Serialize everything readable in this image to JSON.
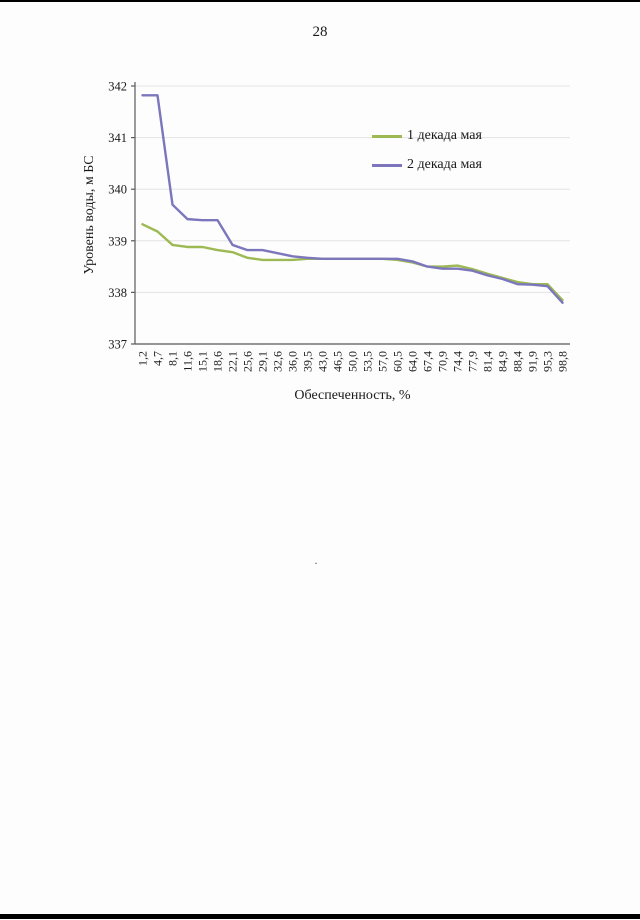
{
  "page": {
    "number": "28",
    "stray_mark": "·"
  },
  "chart_data": {
    "type": "line",
    "title": "",
    "xlabel": "Обеспеченность, %",
    "ylabel": "Уровень воды, м БС",
    "ylim": [
      337,
      342
    ],
    "yticks": [
      337,
      338,
      339,
      340,
      341,
      342
    ],
    "grid": true,
    "legend_position": "inside-right",
    "categories": [
      "1,2",
      "4,7",
      "8,1",
      "11,6",
      "15,1",
      "18,6",
      "22,1",
      "25,6",
      "29,1",
      "32,6",
      "36,0",
      "39,5",
      "43,0",
      "46,5",
      "50,0",
      "53,5",
      "57,0",
      "60,5",
      "64,0",
      "67,4",
      "70,9",
      "74,4",
      "77,9",
      "81,4",
      "84,9",
      "88,4",
      "91,9",
      "95,3",
      "98,8"
    ],
    "series": [
      {
        "name": "1 декада мая",
        "color": "#9cb953",
        "values": [
          339.32,
          339.18,
          338.92,
          338.88,
          338.88,
          338.82,
          338.78,
          338.67,
          338.63,
          338.63,
          338.63,
          338.65,
          338.65,
          338.65,
          338.65,
          338.65,
          338.65,
          338.63,
          338.58,
          338.5,
          338.5,
          338.52,
          338.45,
          338.36,
          338.28,
          338.2,
          338.16,
          338.16,
          337.85
        ]
      },
      {
        "name": "2 декада мая",
        "color": "#7c76bd",
        "values": [
          341.82,
          341.82,
          339.7,
          339.42,
          339.4,
          339.4,
          338.92,
          338.82,
          338.82,
          338.76,
          338.7,
          338.67,
          338.65,
          338.65,
          338.65,
          338.65,
          338.65,
          338.65,
          338.6,
          338.5,
          338.46,
          338.46,
          338.42,
          338.33,
          338.26,
          338.16,
          338.15,
          338.12,
          337.8
        ]
      }
    ]
  }
}
